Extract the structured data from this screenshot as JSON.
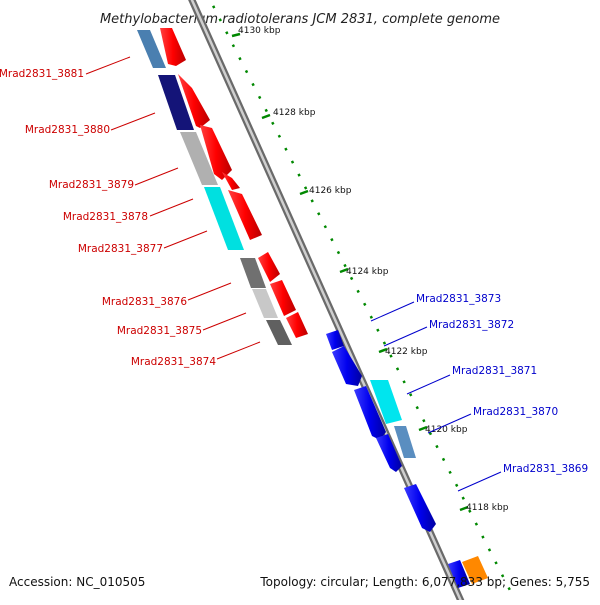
{
  "title": "Methylobacterium radiotolerans JCM 2831, complete genome",
  "footer": {
    "accession": "Accession: NC_010505",
    "summary": "Topology: circular; Length: 6,077,833 bp; Genes: 5,755"
  },
  "ruler_ticks": [
    "4130 kbp",
    "4128 kbp",
    "4126 kbp",
    "4124 kbp",
    "4122 kbp",
    "4120 kbp",
    "4118 kbp"
  ],
  "reverse_strand_labels": [
    "Mrad2831_3881",
    "Mrad2831_3880",
    "Mrad2831_3879",
    "Mrad2831_3878",
    "Mrad2831_3877",
    "Mrad2831_3876",
    "Mrad2831_3875",
    "Mrad2831_3874"
  ],
  "forward_strand_labels": [
    "Mrad2831_3873",
    "Mrad2831_3872",
    "Mrad2831_3871",
    "Mrad2831_3870",
    "Mrad2831_3869"
  ],
  "colors": {
    "reverse_label": "#cc0000",
    "forward_label": "#0000cc",
    "cds_reverse": "#ff0000",
    "cds_forward": "#0000ee",
    "ruler_dots": "#008800",
    "backbone": "#8a8a8a"
  }
}
